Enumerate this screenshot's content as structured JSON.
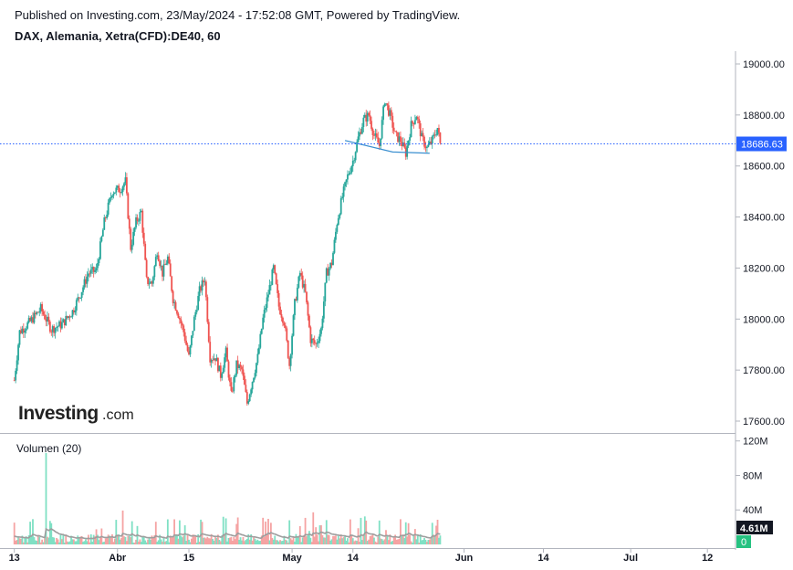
{
  "header": {
    "published": "Published on Investing.com, 23/May/2024 - 17:52:08 GMT, Powered by TradingView.",
    "symbol": "DAX, Alemania, Xetra(CFD):DE40, 60"
  },
  "logo": {
    "brand": "Investing",
    "suffix": ".com"
  },
  "colors": {
    "up": "#26a69a",
    "down": "#ef5350",
    "price_line": "#2962ff",
    "price_badge": "#2962ff",
    "volume_up": "#7fe0c4",
    "volume_down": "#f5a3a3",
    "volume_ma": "#9e9e9e",
    "drawing": "#3a8fd0"
  },
  "chart_data": {
    "type": "candlestick",
    "price": {
      "ylim": [
        17540,
        19080
      ],
      "yticks": [
        17600,
        17800,
        18000,
        18200,
        18400,
        18600,
        18800,
        19000
      ],
      "ytick_labels": [
        "17600.00",
        "17800.00",
        "18000.00",
        "18200.00",
        "18400.00",
        "18600.00",
        "18800.00",
        "19000.00"
      ],
      "last_price": 18686.63,
      "last_price_label": "18686.63",
      "anchors": [
        [
          0,
          17760
        ],
        [
          2,
          17950
        ],
        [
          6,
          17990
        ],
        [
          10,
          18040
        ],
        [
          14,
          17960
        ],
        [
          18,
          17980
        ],
        [
          22,
          18030
        ],
        [
          25,
          18100
        ],
        [
          28,
          18180
        ],
        [
          31,
          18190
        ],
        [
          34,
          18380
        ],
        [
          37,
          18500
        ],
        [
          40,
          18510
        ],
        [
          42,
          18540
        ],
        [
          44,
          18280
        ],
        [
          46,
          18380
        ],
        [
          48,
          18420
        ],
        [
          50,
          18150
        ],
        [
          52,
          18140
        ],
        [
          54,
          18270
        ],
        [
          56,
          18180
        ],
        [
          58,
          18240
        ],
        [
          60,
          18080
        ],
        [
          62,
          18020
        ],
        [
          64,
          17950
        ],
        [
          66,
          17850
        ],
        [
          68,
          18000
        ],
        [
          70,
          18110
        ],
        [
          72,
          18160
        ],
        [
          74,
          17850
        ],
        [
          76,
          17850
        ],
        [
          78,
          17780
        ],
        [
          80,
          17870
        ],
        [
          82,
          17700
        ],
        [
          84,
          17820
        ],
        [
          86,
          17800
        ],
        [
          88,
          17670
        ],
        [
          90,
          17760
        ],
        [
          92,
          17850
        ],
        [
          94,
          18000
        ],
        [
          96,
          18100
        ],
        [
          98,
          18200
        ],
        [
          100,
          18050
        ],
        [
          102,
          17990
        ],
        [
          104,
          17820
        ],
        [
          106,
          18060
        ],
        [
          108,
          18180
        ],
        [
          110,
          18100
        ],
        [
          112,
          17920
        ],
        [
          114,
          17900
        ],
        [
          116,
          17960
        ],
        [
          118,
          18180
        ],
        [
          120,
          18220
        ],
        [
          122,
          18380
        ],
        [
          124,
          18480
        ],
        [
          126,
          18560
        ],
        [
          128,
          18620
        ],
        [
          130,
          18710
        ],
        [
          132,
          18780
        ],
        [
          134,
          18800
        ],
        [
          136,
          18720
        ],
        [
          138,
          18680
        ],
        [
          140,
          18860
        ],
        [
          142,
          18800
        ],
        [
          144,
          18720
        ],
        [
          146,
          18700
        ],
        [
          148,
          18650
        ],
        [
          150,
          18760
        ],
        [
          152,
          18800
        ],
        [
          154,
          18710
        ],
        [
          156,
          18670
        ],
        [
          158,
          18700
        ],
        [
          160,
          18750
        ],
        [
          161,
          18686
        ]
      ]
    },
    "x_axis": {
      "labels": [
        "13",
        "Abr",
        "15",
        "May",
        "14",
        "Jun",
        "14",
        "Jul",
        "12"
      ],
      "positions": [
        0,
        39,
        66,
        105,
        128,
        170,
        200,
        233,
        262
      ],
      "range": [
        -3,
        264
      ]
    },
    "drawing": {
      "points": [
        [
          125,
          18700
        ],
        [
          143,
          18655
        ],
        [
          157,
          18650
        ]
      ]
    },
    "volume": {
      "title": "Volumen (20)",
      "yticks": [
        40,
        80,
        120
      ],
      "ytick_labels": [
        "40M",
        "80M",
        "120M"
      ],
      "ylim": [
        0,
        125
      ],
      "last_label": "4.61M",
      "ma_label": "0",
      "spike": [
        12,
        106
      ]
    }
  }
}
